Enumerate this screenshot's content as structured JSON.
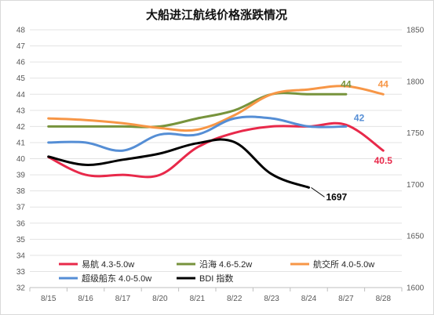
{
  "chart_data": {
    "type": "line",
    "title": "大船进江航线价格涨跌情况",
    "categories": [
      "8/15",
      "8/16",
      "8/17",
      "8/20",
      "8/21",
      "8/22",
      "8/23",
      "8/24",
      "8/27",
      "8/28"
    ],
    "y_left": {
      "min": 32,
      "max": 48,
      "step": 1
    },
    "y_right": {
      "min": 1600,
      "max": 1850,
      "step": 50
    },
    "grid": true,
    "legend_position": "bottom-inside",
    "series": [
      {
        "name": "易航 4.3-5.0w",
        "axis": "left",
        "color": "#e8294a",
        "values": [
          40.1,
          39.0,
          39.0,
          39.0,
          40.7,
          41.6,
          42.0,
          42.0,
          42.1,
          40.5
        ],
        "end_label": "40.5",
        "end_index": 9
      },
      {
        "name": "沿海 4.6-5.2w",
        "axis": "left",
        "color": "#77933c",
        "values": [
          42.0,
          42.0,
          42.0,
          42.0,
          42.5,
          43.0,
          44.0,
          44.0,
          44.0,
          null
        ],
        "end_label": "44",
        "end_index": 8
      },
      {
        "name": "航交所 4.0-5.0w",
        "axis": "left",
        "color": "#f79646",
        "values": [
          42.5,
          42.4,
          42.2,
          41.9,
          41.8,
          42.7,
          44.0,
          44.3,
          44.5,
          44.0
        ],
        "end_label": "44",
        "end_index": 9
      },
      {
        "name": "超级船东 4.0-5.0w",
        "axis": "left",
        "color": "#558ed5",
        "values": [
          41.0,
          41.0,
          40.5,
          41.5,
          41.5,
          42.5,
          42.5,
          42.0,
          42.0,
          null
        ],
        "end_label": "42",
        "end_index": 8
      },
      {
        "name": "BDI 指数",
        "axis": "right",
        "color": "#000000",
        "values": [
          1727,
          1719,
          1724,
          1730,
          1740,
          1741,
          1710,
          1697,
          null,
          null
        ],
        "end_label": "1697",
        "end_index": 7
      }
    ]
  }
}
